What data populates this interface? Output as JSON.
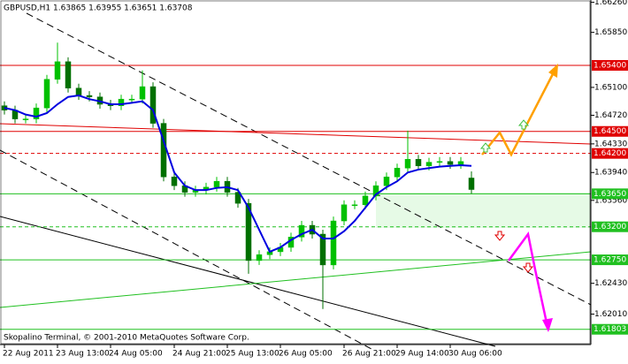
{
  "chart_data": {
    "type": "candlestick",
    "header": "GBPUSD,H1 1.63865 1.63955 1.63651 1.63708",
    "footer": "Skopalino Terminal, © 2001-2010 MetaQuotes Software Corp.",
    "categories": [
      "22 Aug 2011",
      null,
      null,
      null,
      null,
      "23 Aug 13:00",
      null,
      null,
      null,
      null,
      "24 Aug 05:00",
      null,
      null,
      null,
      null,
      null,
      "24 Aug 21:00",
      null,
      null,
      null,
      null,
      "25 Aug 13:00",
      null,
      null,
      null,
      null,
      "26 Aug 05:00",
      null,
      null,
      null,
      null,
      null,
      "26 Aug 21:00",
      null,
      null,
      null,
      null,
      "29 Aug 14:00",
      null,
      null,
      null,
      null,
      "30 Aug 06:00",
      null,
      null
    ],
    "open": [
      1.6485,
      1.6479,
      1.6467,
      1.6467,
      1.6482,
      1.6521,
      1.6545,
      1.6509,
      1.6499,
      1.6497,
      1.6487,
      1.6485,
      1.6494,
      1.6494,
      1.6511,
      1.6461,
      1.6388,
      1.6376,
      1.6367,
      1.637,
      1.6374,
      1.6382,
      1.6367,
      1.6352,
      1.6274,
      1.6282,
      1.6286,
      1.6292,
      1.6306,
      1.6322,
      1.631,
      1.6268,
      1.6328,
      1.635,
      1.635,
      1.6362,
      1.6376,
      1.6388,
      1.64,
      1.6412,
      1.6403,
      1.6408,
      1.6409,
      1.6405,
      1.63865
    ],
    "high": [
      1.6491,
      1.6485,
      1.6473,
      1.6488,
      1.6527,
      1.6571,
      1.6551,
      1.6515,
      1.6505,
      1.6503,
      1.6493,
      1.65,
      1.65,
      1.6533,
      1.6517,
      1.6467,
      1.6394,
      1.6382,
      1.6376,
      1.638,
      1.6388,
      1.6388,
      1.6373,
      1.6358,
      1.6288,
      1.6292,
      1.6298,
      1.6312,
      1.6328,
      1.6328,
      1.6316,
      1.6334,
      1.6356,
      1.6356,
      1.6368,
      1.6382,
      1.6394,
      1.6406,
      1.6451,
      1.6418,
      1.6414,
      1.6415,
      1.6415,
      1.6415,
      1.63955
    ],
    "low": [
      1.6473,
      1.6461,
      1.6461,
      1.6461,
      1.6476,
      1.6515,
      1.6503,
      1.6493,
      1.6491,
      1.6481,
      1.6479,
      1.6479,
      1.6488,
      1.6488,
      1.6455,
      1.6382,
      1.637,
      1.6361,
      1.6361,
      1.6364,
      1.6368,
      1.6361,
      1.6346,
      1.6256,
      1.6268,
      1.6276,
      1.628,
      1.6286,
      1.63,
      1.6304,
      1.6208,
      1.6262,
      1.6322,
      1.6344,
      1.6344,
      1.6356,
      1.637,
      1.6382,
      1.6394,
      1.6397,
      1.6397,
      1.6402,
      1.6399,
      1.6399,
      1.63651
    ],
    "close": [
      1.6479,
      1.6467,
      1.6467,
      1.6482,
      1.6521,
      1.6545,
      1.6509,
      1.6499,
      1.6497,
      1.6487,
      1.6485,
      1.6494,
      1.6494,
      1.6511,
      1.6461,
      1.6388,
      1.6376,
      1.6367,
      1.637,
      1.6374,
      1.6382,
      1.6367,
      1.6352,
      1.6274,
      1.6282,
      1.6286,
      1.6292,
      1.6306,
      1.6322,
      1.631,
      1.6268,
      1.6328,
      1.635,
      1.635,
      1.6362,
      1.6376,
      1.6388,
      1.64,
      1.6412,
      1.6403,
      1.6408,
      1.6409,
      1.6405,
      1.6409,
      1.63708
    ],
    "up_color": "#00c000",
    "down_color": "#007000",
    "moving_average": {
      "color": "#0000e0",
      "values": [
        1.6482,
        1.6479,
        1.6473,
        1.647,
        1.6475,
        1.6487,
        1.6497,
        1.6499,
        1.6494,
        1.6491,
        1.6487,
        1.6487,
        1.6489,
        1.6491,
        1.6479,
        1.6437,
        1.6394,
        1.6376,
        1.637,
        1.637,
        1.6373,
        1.6374,
        1.637,
        1.6346,
        1.6316,
        1.6286,
        1.6292,
        1.6302,
        1.631,
        1.6316,
        1.6304,
        1.6304,
        1.6314,
        1.6328,
        1.6346,
        1.6364,
        1.6374,
        1.6382,
        1.6394,
        1.6398,
        1.64,
        1.6402,
        1.6403,
        1.6404,
        1.6403
      ]
    },
    "levels": [
      {
        "value": 1.654,
        "label": "1.65400",
        "color": "#e00000",
        "dashed": false
      },
      {
        "value": 1.645,
        "label": "1.64500",
        "color": "#e00000",
        "dashed": false
      },
      {
        "value": 1.642,
        "label": "1.64200",
        "color": "#e00000",
        "dashed": true
      },
      {
        "value": 1.6365,
        "label": "1.63650",
        "color": "#20c020",
        "dashed": false
      },
      {
        "value": 1.632,
        "label": "1.63200",
        "color": "#20c020",
        "dashed": true
      },
      {
        "value": 1.6275,
        "label": "1.62750",
        "color": "#20c020",
        "dashed": false
      },
      {
        "value": 1.61803,
        "label": "1.61803",
        "color": "#20c020",
        "dashed": false
      }
    ],
    "ylim": [
      1.61595,
      1.66291
    ],
    "yticks": [
      {
        "value": 1.6626,
        "label": "1.66260"
      },
      {
        "value": 1.6585,
        "label": "1.65850"
      },
      {
        "value": 1.651,
        "label": "1.65100"
      },
      {
        "value": 1.6472,
        "label": "1.64720"
      },
      {
        "value": 1.6433,
        "label": "1.64330"
      },
      {
        "value": 1.6394,
        "label": "1.63940"
      },
      {
        "value": 1.6356,
        "label": "1.63560"
      },
      {
        "value": 1.6243,
        "label": "1.62430"
      },
      {
        "value": 1.6201,
        "label": "1.62010"
      }
    ]
  }
}
